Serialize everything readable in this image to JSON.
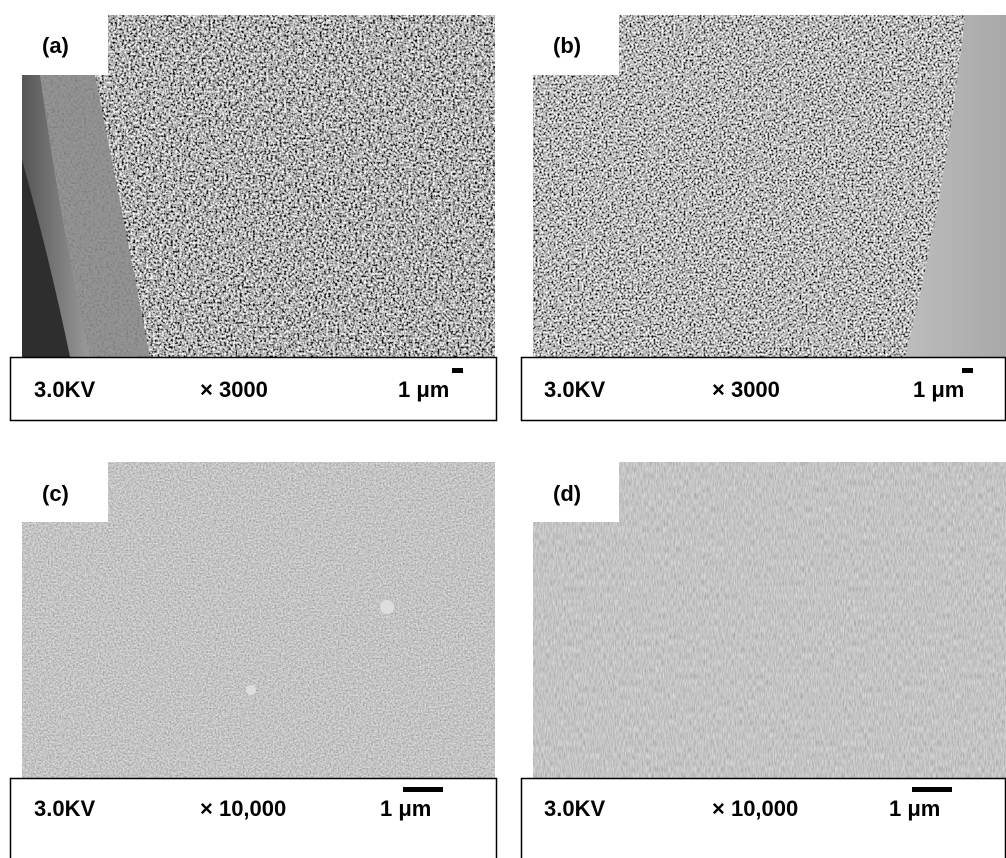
{
  "panels": [
    {
      "label": "(a)",
      "voltage": "3.0KV",
      "magnification": "× 3000",
      "scale": "1 μm"
    },
    {
      "label": "(b)",
      "voltage": "3.0KV",
      "magnification": "× 3000",
      "scale": "1 μm"
    },
    {
      "label": "(c)",
      "voltage": "3.0KV",
      "magnification": "× 10,000",
      "scale": "1 μm"
    },
    {
      "label": "(d)",
      "voltage": "3.0KV",
      "magnification": "× 10,000",
      "scale": "1 μm"
    }
  ]
}
